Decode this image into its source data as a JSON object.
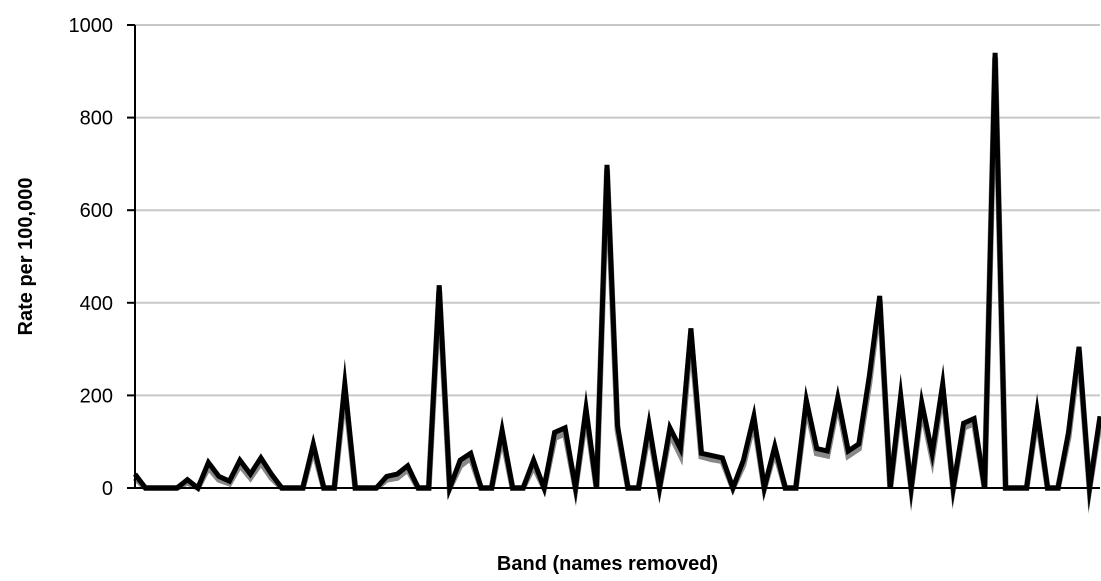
{
  "chart_data": {
    "type": "line",
    "xlabel": "Band (names removed)",
    "ylabel": "Rate per 100,000",
    "ylim": [
      0,
      1000
    ],
    "yticks": [
      0,
      200,
      400,
      600,
      800,
      1000
    ],
    "grid": "horizontal",
    "legend": "none",
    "series": [
      {
        "color": "#000000",
        "values": [
          30,
          0,
          0,
          0,
          0,
          18,
          0,
          55,
          25,
          15,
          60,
          30,
          65,
          30,
          0,
          0,
          0,
          95,
          0,
          0,
          225,
          0,
          0,
          0,
          25,
          30,
          48,
          0,
          0,
          438,
          0,
          60,
          75,
          0,
          0,
          125,
          0,
          0,
          60,
          0,
          120,
          130,
          0,
          172,
          0,
          698,
          135,
          0,
          0,
          138,
          0,
          130,
          85,
          345,
          75,
          70,
          65,
          0,
          60,
          155,
          0,
          90,
          0,
          0,
          190,
          85,
          80,
          195,
          80,
          95,
          240,
          415,
          0,
          200,
          0,
          185,
          75,
          225,
          0,
          140,
          150,
          0,
          940,
          0,
          0,
          0,
          165,
          0,
          0,
          120,
          305,
          0,
          155
        ]
      },
      {
        "color": "#888888",
        "values": [
          22,
          0,
          0,
          0,
          0,
          12,
          0,
          45,
          18,
          10,
          50,
          22,
          55,
          22,
          0,
          0,
          0,
          85,
          0,
          0,
          210,
          0,
          0,
          0,
          18,
          22,
          40,
          0,
          0,
          425,
          0,
          48,
          65,
          0,
          0,
          112,
          0,
          0,
          48,
          0,
          108,
          118,
          0,
          160,
          0,
          688,
          125,
          0,
          0,
          125,
          0,
          118,
          72,
          330,
          68,
          62,
          58,
          0,
          50,
          145,
          0,
          80,
          0,
          0,
          178,
          75,
          70,
          185,
          70,
          85,
          225,
          405,
          0,
          188,
          0,
          172,
          65,
          212,
          0,
          130,
          140,
          0,
          930,
          0,
          0,
          0,
          155,
          0,
          0,
          110,
          295,
          0,
          145
        ]
      }
    ]
  }
}
